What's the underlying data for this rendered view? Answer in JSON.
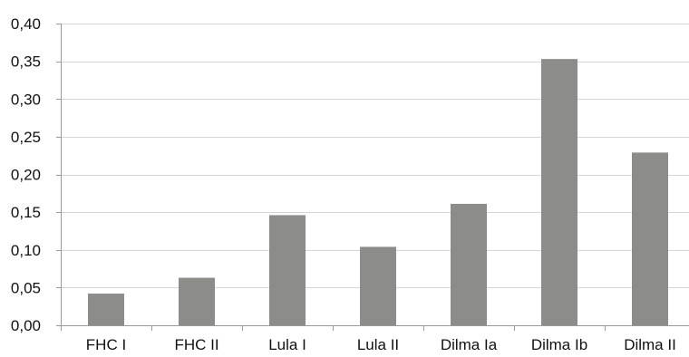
{
  "chart_data": {
    "type": "bar",
    "title": "",
    "xlabel": "",
    "ylabel": "",
    "categories": [
      "FHC I",
      "FHC II",
      "Lula I",
      "Lula II",
      "Dilma Ia",
      "Dilma Ib",
      "Dilma II"
    ],
    "values": [
      0.042,
      0.063,
      0.146,
      0.104,
      0.161,
      0.353,
      0.229
    ],
    "ylim": [
      0,
      0.4
    ],
    "yticks": [
      0.0,
      0.05,
      0.1,
      0.15,
      0.2,
      0.25,
      0.3,
      0.35,
      0.4
    ],
    "ytick_labels": [
      "0,00",
      "0,05",
      "0,10",
      "0,15",
      "0,20",
      "0,25",
      "0,30",
      "0,35",
      "0,40"
    ],
    "grid": true,
    "legend": "none",
    "bar_color": "#8c8c8a"
  }
}
